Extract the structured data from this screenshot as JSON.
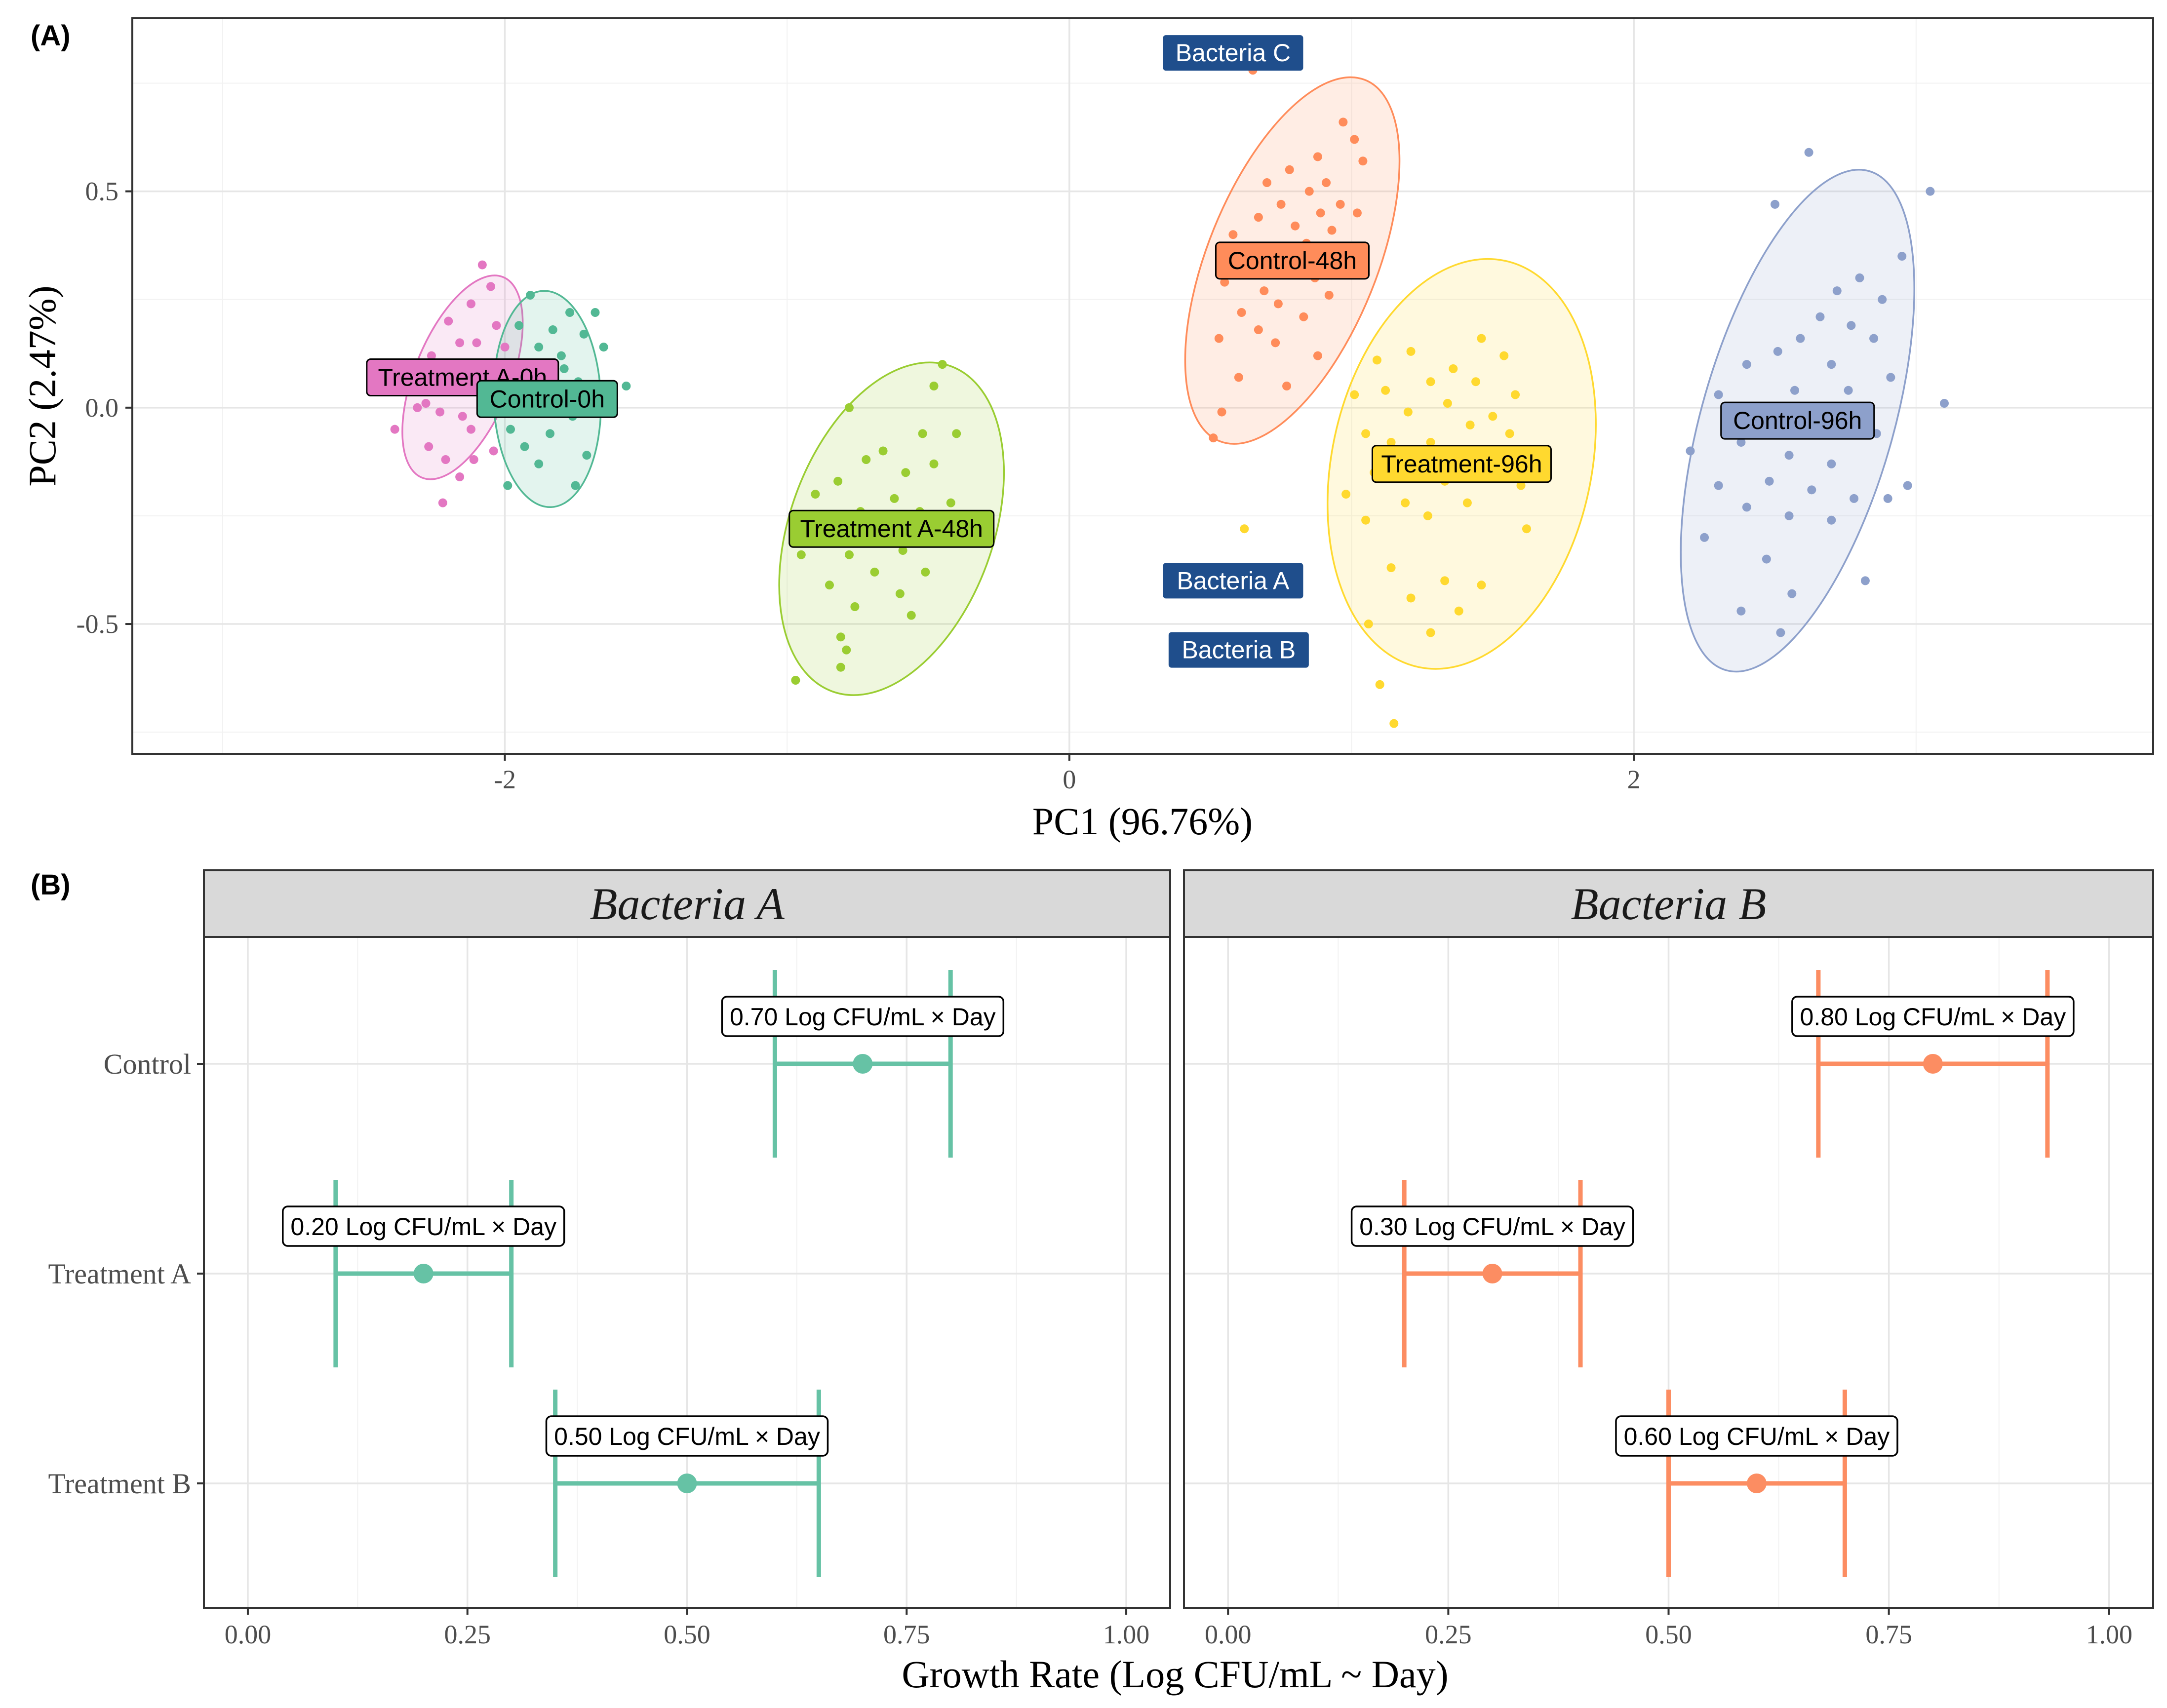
{
  "colors": {
    "treatment_a_0h": "#E377C2",
    "control_0h": "#52B894",
    "treatment_a_48h": "#9ACD32",
    "control_48h": "#FF8C5A",
    "treatment_96h": "#FFD92F",
    "control_96h": "#8DA0CB",
    "bacteria_label": "#1F4E8C",
    "bacteria_a_series": "#66C2A5",
    "bacteria_b_series": "#FC8D62"
  },
  "panel_a": {
    "tag": "(A)",
    "xlabel": "PC1 (96.76%)",
    "ylabel": "PC2 (2.47%)"
  },
  "panel_b": {
    "tag": "(B)",
    "xlabel": "Growth Rate (Log CFU/mL ~ Day)"
  },
  "chart_data": [
    {
      "type": "scatter",
      "title": "(A)",
      "xlabel": "PC1 (96.76%)",
      "ylabel": "PC2 (2.47%)",
      "xlim": [
        -3.32,
        3.84
      ],
      "ylim": [
        -0.8,
        0.9
      ],
      "xticks": [
        -2,
        0,
        2
      ],
      "xtick_labels": [
        "-2",
        "0",
        "2"
      ],
      "yticks": [
        -0.5,
        0.0,
        0.5
      ],
      "ytick_labels": [
        "-0.5",
        "0.0",
        "0.5"
      ],
      "groups": [
        {
          "name": "Treatment A-0h",
          "color": "#E377C2",
          "center": [
            -2.15,
            0.07
          ],
          "ellipse": {
            "rx": 0.17,
            "ry": 0.25,
            "angle_deg": 22
          },
          "points": [
            [
              -2.08,
              0.33
            ],
            [
              -2.05,
              0.28
            ],
            [
              -2.12,
              0.24
            ],
            [
              -2.2,
              0.2
            ],
            [
              -2.03,
              0.19
            ],
            [
              -2.16,
              0.15
            ],
            [
              -2.26,
              0.12
            ],
            [
              -2.1,
              0.15
            ],
            [
              -2.0,
              0.14
            ],
            [
              -2.34,
              0.09
            ],
            [
              -2.2,
              0.05
            ],
            [
              -2.28,
              0.01
            ],
            [
              -2.23,
              -0.01
            ],
            [
              -2.31,
              0.0
            ],
            [
              -2.39,
              -0.05
            ],
            [
              -2.15,
              -0.02
            ],
            [
              -2.27,
              -0.09
            ],
            [
              -2.12,
              -0.05
            ],
            [
              -2.21,
              -0.12
            ],
            [
              -2.11,
              -0.12
            ],
            [
              -2.16,
              -0.16
            ],
            [
              -2.04,
              -0.1
            ],
            [
              -2.22,
              -0.22
            ],
            [
              -2.06,
              0.08
            ],
            [
              -2.18,
              0.1
            ]
          ]
        },
        {
          "name": "Control-0h",
          "color": "#52B894",
          "center": [
            -1.85,
            0.02
          ],
          "ellipse": {
            "rx": 0.19,
            "ry": 0.25,
            "angle_deg": -2
          },
          "points": [
            [
              -1.91,
              0.26
            ],
            [
              -1.77,
              0.22
            ],
            [
              -1.68,
              0.22
            ],
            [
              -1.95,
              0.19
            ],
            [
              -1.83,
              0.18
            ],
            [
              -1.72,
              0.17
            ],
            [
              -1.88,
              0.14
            ],
            [
              -1.65,
              0.14
            ],
            [
              -1.94,
              0.1
            ],
            [
              -1.79,
              0.09
            ],
            [
              -1.86,
              0.06
            ],
            [
              -1.74,
              0.06
            ],
            [
              -1.57,
              0.05
            ],
            [
              -1.93,
              0.04
            ],
            [
              -1.81,
              0.03
            ],
            [
              -1.69,
              0.02
            ],
            [
              -1.89,
              -0.01
            ],
            [
              -1.76,
              -0.02
            ],
            [
              -1.98,
              -0.05
            ],
            [
              -1.84,
              -0.06
            ],
            [
              -1.93,
              -0.09
            ],
            [
              -1.71,
              -0.11
            ],
            [
              -1.88,
              -0.13
            ],
            [
              -1.99,
              -0.18
            ],
            [
              -1.75,
              -0.18
            ],
            [
              -1.8,
              0.12
            ]
          ]
        },
        {
          "name": "Treatment A-48h",
          "color": "#9ACD32",
          "center": [
            -0.63,
            -0.28
          ],
          "ellipse": {
            "rx": 0.36,
            "ry": 0.4,
            "angle_deg": 20
          },
          "points": [
            [
              -0.45,
              0.1
            ],
            [
              -0.48,
              0.05
            ],
            [
              -0.78,
              0.0
            ],
            [
              -0.52,
              -0.06
            ],
            [
              -0.4,
              -0.06
            ],
            [
              -0.66,
              -0.1
            ],
            [
              -0.48,
              -0.13
            ],
            [
              -0.72,
              -0.12
            ],
            [
              -0.58,
              -0.15
            ],
            [
              -0.82,
              -0.17
            ],
            [
              -0.9,
              -0.2
            ],
            [
              -0.62,
              -0.21
            ],
            [
              -0.42,
              -0.22
            ],
            [
              -0.74,
              -0.24
            ],
            [
              -0.53,
              -0.24
            ],
            [
              -0.84,
              -0.27
            ],
            [
              -0.66,
              -0.29
            ],
            [
              -0.47,
              -0.3
            ],
            [
              -0.59,
              -0.33
            ],
            [
              -0.78,
              -0.34
            ],
            [
              -0.95,
              -0.34
            ],
            [
              -0.69,
              -0.38
            ],
            [
              -0.51,
              -0.38
            ],
            [
              -0.85,
              -0.41
            ],
            [
              -0.6,
              -0.43
            ],
            [
              -0.76,
              -0.46
            ],
            [
              -0.56,
              -0.48
            ],
            [
              -0.81,
              -0.53
            ],
            [
              -0.79,
              -0.56
            ],
            [
              -0.81,
              -0.6
            ],
            [
              -0.97,
              -0.63
            ]
          ]
        },
        {
          "name": "Control-48h",
          "color": "#FF8C5A",
          "center": [
            0.79,
            0.34
          ],
          "ellipse": {
            "rx": 0.3,
            "ry": 0.45,
            "angle_deg": 22
          },
          "points": [
            [
              0.65,
              0.78
            ],
            [
              0.97,
              0.66
            ],
            [
              1.01,
              0.62
            ],
            [
              0.88,
              0.58
            ],
            [
              1.04,
              0.57
            ],
            [
              0.78,
              0.55
            ],
            [
              0.91,
              0.52
            ],
            [
              0.7,
              0.52
            ],
            [
              0.85,
              0.5
            ],
            [
              0.96,
              0.47
            ],
            [
              0.75,
              0.47
            ],
            [
              0.89,
              0.45
            ],
            [
              1.02,
              0.45
            ],
            [
              0.67,
              0.44
            ],
            [
              0.8,
              0.42
            ],
            [
              0.93,
              0.41
            ],
            [
              0.58,
              0.4
            ],
            [
              0.84,
              0.38
            ],
            [
              0.72,
              0.37
            ],
            [
              0.96,
              0.35
            ],
            [
              0.63,
              0.33
            ],
            [
              0.79,
              0.32
            ],
            [
              0.87,
              0.3
            ],
            [
              0.55,
              0.29
            ],
            [
              0.69,
              0.27
            ],
            [
              0.92,
              0.26
            ],
            [
              0.74,
              0.24
            ],
            [
              0.61,
              0.22
            ],
            [
              0.83,
              0.21
            ],
            [
              0.67,
              0.18
            ],
            [
              0.53,
              0.16
            ],
            [
              0.73,
              0.15
            ],
            [
              0.88,
              0.12
            ],
            [
              0.6,
              0.07
            ],
            [
              0.77,
              0.05
            ],
            [
              0.54,
              -0.01
            ],
            [
              0.51,
              -0.07
            ]
          ]
        },
        {
          "name": "Treatment-96h",
          "color": "#FFD92F",
          "center": [
            1.39,
            -0.13
          ],
          "ellipse": {
            "rx": 0.46,
            "ry": 0.48,
            "angle_deg": 12
          },
          "points": [
            [
              1.46,
              0.16
            ],
            [
              1.21,
              0.13
            ],
            [
              1.54,
              0.12
            ],
            [
              1.09,
              0.11
            ],
            [
              1.36,
              0.09
            ],
            [
              1.28,
              0.06
            ],
            [
              1.44,
              0.06
            ],
            [
              1.12,
              0.04
            ],
            [
              1.58,
              0.03
            ],
            [
              1.01,
              0.03
            ],
            [
              1.34,
              0.01
            ],
            [
              1.2,
              -0.01
            ],
            [
              1.5,
              -0.02
            ],
            [
              1.42,
              -0.04
            ],
            [
              1.56,
              -0.06
            ],
            [
              1.05,
              -0.06
            ],
            [
              1.28,
              -0.08
            ],
            [
              1.14,
              -0.08
            ],
            [
              1.38,
              -0.1
            ],
            [
              1.24,
              -0.12
            ],
            [
              1.46,
              -0.12
            ],
            [
              1.08,
              -0.15
            ],
            [
              1.33,
              -0.17
            ],
            [
              1.6,
              -0.18
            ],
            [
              0.98,
              -0.2
            ],
            [
              1.19,
              -0.22
            ],
            [
              1.41,
              -0.22
            ],
            [
              1.27,
              -0.25
            ],
            [
              1.05,
              -0.26
            ],
            [
              1.62,
              -0.28
            ],
            [
              1.14,
              -0.37
            ],
            [
              1.33,
              -0.4
            ],
            [
              1.46,
              -0.41
            ],
            [
              1.21,
              -0.44
            ],
            [
              1.38,
              -0.47
            ],
            [
              1.06,
              -0.5
            ],
            [
              1.28,
              -0.52
            ],
            [
              1.1,
              -0.64
            ],
            [
              1.15,
              -0.73
            ],
            [
              0.62,
              -0.28
            ]
          ]
        },
        {
          "name": "Control-96h",
          "color": "#8DA0CB",
          "center": [
            2.58,
            -0.03
          ],
          "ellipse": {
            "rx": 0.34,
            "ry": 0.6,
            "angle_deg": 16
          },
          "points": [
            [
              2.62,
              0.59
            ],
            [
              3.05,
              0.5
            ],
            [
              2.5,
              0.47
            ],
            [
              2.95,
              0.35
            ],
            [
              2.8,
              0.3
            ],
            [
              2.88,
              0.25
            ],
            [
              2.72,
              0.27
            ],
            [
              2.66,
              0.21
            ],
            [
              2.77,
              0.19
            ],
            [
              2.85,
              0.16
            ],
            [
              2.59,
              0.16
            ],
            [
              2.51,
              0.13
            ],
            [
              2.7,
              0.1
            ],
            [
              2.4,
              0.1
            ],
            [
              2.91,
              0.07
            ],
            [
              2.57,
              0.04
            ],
            [
              2.76,
              0.04
            ],
            [
              2.3,
              0.03
            ],
            [
              3.1,
              0.01
            ],
            [
              2.48,
              -0.01
            ],
            [
              2.65,
              -0.05
            ],
            [
              2.86,
              -0.06
            ],
            [
              2.38,
              -0.08
            ],
            [
              2.55,
              -0.11
            ],
            [
              2.7,
              -0.13
            ],
            [
              2.97,
              -0.18
            ],
            [
              2.48,
              -0.17
            ],
            [
              2.3,
              -0.18
            ],
            [
              2.63,
              -0.19
            ],
            [
              2.78,
              -0.21
            ],
            [
              2.4,
              -0.23
            ],
            [
              2.9,
              -0.21
            ],
            [
              2.55,
              -0.25
            ],
            [
              2.7,
              -0.26
            ],
            [
              2.25,
              -0.3
            ],
            [
              2.47,
              -0.35
            ],
            [
              2.82,
              -0.4
            ],
            [
              2.56,
              -0.43
            ],
            [
              2.38,
              -0.47
            ],
            [
              2.52,
              -0.52
            ],
            [
              2.2,
              -0.1
            ]
          ]
        }
      ],
      "annotations": [
        {
          "text": "Bacteria C",
          "at": [
            0.58,
            0.82
          ]
        },
        {
          "text": "Bacteria A",
          "at": [
            0.58,
            -0.4
          ]
        },
        {
          "text": "Bacteria B",
          "at": [
            0.6,
            -0.56
          ]
        }
      ]
    },
    {
      "type": "errorbar",
      "title": "(B)",
      "xlabel": "Growth Rate (Log CFU/mL ~ Day)",
      "xlim": [
        -0.05,
        1.05
      ],
      "xticks": [
        0.0,
        0.25,
        0.5,
        0.75,
        1.0
      ],
      "xtick_labels": [
        "0.00",
        "0.25",
        "0.50",
        "0.75",
        "1.00"
      ],
      "categories": [
        "Control",
        "Treatment A",
        "Treatment B"
      ],
      "series": [
        {
          "name": "Bacteria A",
          "color": "#66C2A5",
          "values": [
            0.7,
            0.2,
            0.5
          ],
          "lower": [
            0.6,
            0.1,
            0.35
          ],
          "upper": [
            0.8,
            0.3,
            0.65
          ],
          "labels": [
            "0.70 Log CFU/mL × Day",
            "0.20 Log CFU/mL × Day",
            "0.50 Log CFU/mL × Day"
          ]
        },
        {
          "name": "Bacteria B",
          "color": "#FC8D62",
          "values": [
            0.8,
            0.3,
            0.6
          ],
          "lower": [
            0.67,
            0.2,
            0.5
          ],
          "upper": [
            0.93,
            0.4,
            0.7
          ],
          "labels": [
            "0.80 Log CFU/mL × Day",
            "0.30 Log CFU/mL × Day",
            "0.60 Log CFU/mL × Day"
          ]
        }
      ]
    }
  ]
}
